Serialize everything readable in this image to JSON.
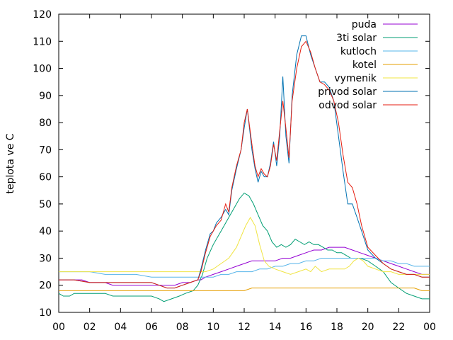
{
  "chart_data": {
    "type": "line",
    "title": "",
    "xlabel": "",
    "ylabel": "teplota ve C",
    "xlim": [
      0,
      24
    ],
    "ylim": [
      10,
      120
    ],
    "x_tick_labels": [
      "00",
      "02",
      "04",
      "06",
      "08",
      "10",
      "12",
      "14",
      "16",
      "18",
      "20",
      "22",
      "00"
    ],
    "y_tick_labels": [
      "10",
      "20",
      "30",
      "40",
      "50",
      "60",
      "70",
      "80",
      "90",
      "100",
      "110",
      "120"
    ],
    "grid": false,
    "legend_position": "top-right",
    "series": [
      {
        "name": "puda",
        "color": "#9400d3",
        "x": [
          0,
          1.5,
          2,
          2.5,
          3,
          3.5,
          4,
          4.5,
          5,
          5.5,
          6,
          6.5,
          7,
          7.5,
          8,
          8.5,
          9,
          9.2,
          9.5,
          10,
          10.5,
          11,
          11.5,
          12,
          12.5,
          13,
          13.5,
          14,
          14.5,
          15,
          15.5,
          16,
          16.5,
          17,
          17.5,
          18,
          18.5,
          19,
          19.5,
          20,
          20.5,
          21,
          21.5,
          22,
          22.5,
          23,
          23.5,
          24
        ],
        "y": [
          22,
          22,
          21,
          21,
          21,
          20,
          20,
          20,
          20,
          20,
          20,
          20,
          20,
          20,
          21,
          21,
          22,
          22,
          23,
          24,
          25,
          26,
          27,
          28,
          29,
          29,
          29,
          29,
          30,
          30,
          31,
          32,
          33,
          33,
          34,
          34,
          34,
          33,
          32,
          31,
          30,
          29,
          28,
          27,
          26,
          25,
          24,
          24
        ]
      },
      {
        "name": "3ti solar",
        "color": "#009e73",
        "x": [
          0,
          0.3,
          0.7,
          1,
          2,
          3,
          3.5,
          4,
          4.5,
          5,
          5.5,
          6,
          6.5,
          6.8,
          7.3,
          7.8,
          8.2,
          8.7,
          9,
          9.3,
          9.6,
          10,
          10.5,
          11,
          11.3,
          11.7,
          12,
          12.3,
          12.6,
          12.9,
          13.2,
          13.5,
          13.8,
          14.1,
          14.4,
          14.7,
          15,
          15.3,
          15.6,
          15.9,
          16.2,
          16.5,
          16.8,
          17.1,
          17.4,
          17.7,
          18,
          18.3,
          18.6,
          18.9,
          19.2,
          19.5,
          20,
          20.5,
          21,
          21.5,
          22,
          22.5,
          23,
          23.5,
          24
        ],
        "y": [
          17,
          16,
          16,
          17,
          17,
          17,
          16,
          16,
          16,
          16,
          16,
          16,
          15,
          14,
          15,
          16,
          17,
          18,
          20,
          24,
          30,
          35,
          40,
          45,
          48,
          52,
          54,
          53,
          50,
          46,
          42,
          40,
          36,
          34,
          35,
          34,
          35,
          37,
          36,
          35,
          36,
          35,
          35,
          34,
          33,
          33,
          32,
          32,
          31,
          30,
          30,
          30,
          29,
          27,
          25,
          21,
          19,
          17,
          16,
          15,
          15
        ]
      },
      {
        "name": "kutloch",
        "color": "#56b4e9",
        "x": [
          0,
          1,
          2,
          3,
          4,
          5,
          6,
          7,
          8,
          8.5,
          9,
          9.5,
          10,
          10.5,
          11,
          11.5,
          12,
          12.5,
          13,
          13.5,
          14,
          14.5,
          15,
          15.5,
          16,
          16.5,
          17,
          17.5,
          18,
          18.5,
          19,
          19.5,
          20,
          20.5,
          21,
          21.5,
          22,
          22.5,
          23,
          23.5,
          24
        ],
        "y": [
          25,
          25,
          25,
          24,
          24,
          24,
          23,
          23,
          23,
          23,
          23,
          23,
          23,
          24,
          24,
          25,
          25,
          25,
          26,
          26,
          27,
          27,
          28,
          28,
          29,
          29,
          30,
          30,
          30,
          30,
          30,
          30,
          30,
          30,
          29,
          29,
          28,
          28,
          27,
          27,
          27
        ]
      },
      {
        "name": "kotel",
        "color": "#e69f00",
        "x": [
          0,
          1,
          2,
          3,
          4,
          5,
          6,
          7,
          8,
          9,
          10,
          11,
          12,
          12.5,
          13,
          14,
          15,
          16,
          17,
          18,
          19,
          20,
          21,
          22,
          23,
          23.5,
          24
        ],
        "y": [
          18,
          18,
          18,
          18,
          18,
          18,
          18,
          18,
          18,
          18,
          18,
          18,
          18,
          19,
          19,
          19,
          19,
          19,
          19,
          19,
          19,
          19,
          19,
          19,
          19,
          18,
          18
        ]
      },
      {
        "name": "vymenik",
        "color": "#f0e442",
        "x": [
          0,
          1,
          2,
          3,
          4,
          5,
          6,
          7,
          8,
          8.5,
          9,
          9.5,
          10,
          10.5,
          11,
          11.5,
          11.8,
          12.1,
          12.4,
          12.7,
          13,
          13.3,
          13.6,
          14,
          14.5,
          15,
          15.5,
          16,
          16.3,
          16.6,
          17,
          17.5,
          18,
          18.5,
          18.8,
          19.1,
          19.4,
          19.7,
          20,
          20.5,
          21,
          21.5,
          22,
          22.5,
          23,
          23.5,
          24
        ],
        "y": [
          25,
          25,
          25,
          25,
          25,
          25,
          25,
          25,
          25,
          25,
          25,
          25,
          26,
          28,
          30,
          34,
          38,
          42,
          45,
          42,
          35,
          29,
          27,
          26,
          25,
          24,
          25,
          26,
          25,
          27,
          25,
          26,
          26,
          26,
          27,
          29,
          30,
          29,
          27,
          26,
          25,
          25,
          24,
          24,
          24,
          24,
          24
        ]
      },
      {
        "name": "privod solar",
        "color": "#0072b2",
        "x": [
          0,
          1,
          2,
          3,
          4,
          5,
          6,
          6.5,
          7,
          7.5,
          8,
          8.5,
          9,
          9.2,
          9.5,
          9.8,
          10,
          10.2,
          10.5,
          10.8,
          11,
          11.2,
          11.5,
          11.8,
          12,
          12.2,
          12.5,
          12.7,
          12.9,
          13.1,
          13.3,
          13.5,
          13.7,
          13.9,
          14.1,
          14.3,
          14.5,
          14.7,
          14.9,
          15.1,
          15.4,
          15.7,
          16,
          16.3,
          16.6,
          16.9,
          17.2,
          17.5,
          17.8,
          18.1,
          18.4,
          18.7,
          19,
          19.3,
          19.6,
          20,
          20.5,
          21,
          21.5,
          22,
          22.5,
          23,
          23.5,
          24
        ],
        "y": [
          22,
          22,
          21,
          21,
          21,
          21,
          21,
          20,
          19,
          19,
          20,
          21,
          22,
          26,
          33,
          39,
          40,
          43,
          45,
          48,
          46,
          55,
          63,
          70,
          78,
          85,
          70,
          63,
          58,
          62,
          60,
          60,
          65,
          73,
          64,
          75,
          97,
          75,
          65,
          90,
          105,
          112,
          112,
          105,
          100,
          95,
          95,
          93,
          88,
          75,
          62,
          50,
          50,
          45,
          40,
          33,
          30,
          28,
          26,
          25,
          24,
          24,
          23,
          23
        ]
      },
      {
        "name": "odvod solar",
        "color": "#e51e10",
        "x": [
          0,
          1,
          2,
          3,
          4,
          5,
          6,
          6.5,
          7,
          7.5,
          8,
          8.5,
          9,
          9.2,
          9.5,
          9.8,
          10,
          10.2,
          10.5,
          10.8,
          11,
          11.2,
          11.5,
          11.8,
          12,
          12.2,
          12.5,
          12.7,
          12.9,
          13.1,
          13.3,
          13.5,
          13.7,
          13.9,
          14.1,
          14.3,
          14.5,
          14.7,
          14.9,
          15.1,
          15.4,
          15.7,
          16,
          16.3,
          16.6,
          16.9,
          17.2,
          17.5,
          17.8,
          18.1,
          18.4,
          18.7,
          19,
          19.3,
          19.6,
          20,
          20.5,
          21,
          21.5,
          22,
          22.5,
          23,
          23.5,
          24
        ],
        "y": [
          22,
          22,
          21,
          21,
          21,
          21,
          21,
          20,
          19,
          19,
          20,
          21,
          22,
          25,
          32,
          38,
          40,
          42,
          44,
          50,
          47,
          56,
          64,
          70,
          80,
          85,
          72,
          64,
          60,
          63,
          61,
          60,
          64,
          72,
          66,
          77,
          88,
          78,
          67,
          88,
          100,
          108,
          110,
          106,
          100,
          95,
          94,
          92,
          88,
          80,
          68,
          58,
          56,
          50,
          42,
          34,
          31,
          28,
          26,
          25,
          24,
          24,
          23,
          23
        ]
      }
    ]
  }
}
